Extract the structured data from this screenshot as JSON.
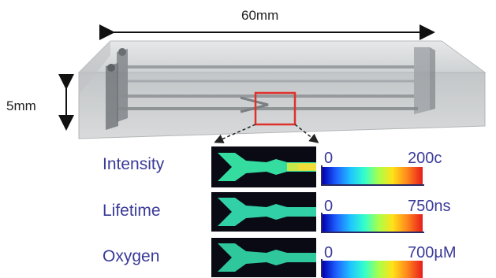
{
  "dimensions": {
    "length": "60mm",
    "height": "5mm"
  },
  "rows": [
    {
      "label": "Intensity",
      "scale_min": "0",
      "scale_max": "200c"
    },
    {
      "label": "Lifetime",
      "scale_min": "0",
      "scale_max": "750ns"
    },
    {
      "label": "Oxygen",
      "scale_min": "0",
      "scale_max": "700µM"
    }
  ],
  "colors": {
    "label_text": "#3a3a99",
    "highlight_box": "#e0302a",
    "device_body": "#c9ccce",
    "channel_fill": "#32d6a8"
  }
}
